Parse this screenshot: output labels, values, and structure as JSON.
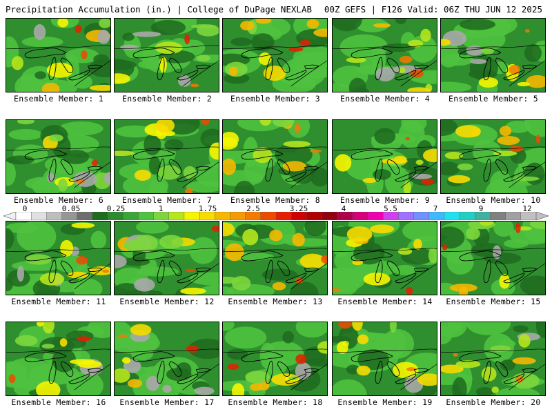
{
  "header": {
    "title": "Precipitation Accumulation (in.) | College of DuPage NEXLAB",
    "run_info": "00Z GEFS | F126 Valid: 06Z THU JUN 12 2025"
  },
  "colorbar": {
    "labels": [
      "0",
      "0.05",
      "0.25",
      "1",
      "1.75",
      "2.5",
      "3.25",
      "4",
      "5.5",
      "7",
      "9",
      "12"
    ],
    "colors": [
      "#ffffff",
      "#e0e0e0",
      "#bdbdbd",
      "#969696",
      "#6e6e6e",
      "#1f6b1f",
      "#2d8a2d",
      "#3aa63a",
      "#4fc23f",
      "#7cd63c",
      "#b5e61d",
      "#f5f500",
      "#f7dc00",
      "#f5b800",
      "#f59a00",
      "#f57a00",
      "#ef4a00",
      "#e52000",
      "#d00000",
      "#b00000",
      "#900010",
      "#b0004a",
      "#d6007a",
      "#f000b0",
      "#d040f0",
      "#a070ff",
      "#7090ff",
      "#40b8ff",
      "#20e0f0",
      "#20d0c0",
      "#40b0a0",
      "#808080",
      "#a0a0a0",
      "#c0c0c0"
    ]
  },
  "members": [
    {
      "label": "Ensemble Member: 1"
    },
    {
      "label": "Ensemble Member: 2"
    },
    {
      "label": "Ensemble Member: 3"
    },
    {
      "label": "Ensemble Member: 4"
    },
    {
      "label": "Ensemble Member: 5"
    },
    {
      "label": "Ensemble Member: 6"
    },
    {
      "label": "Ensemble Member: 7"
    },
    {
      "label": "Ensemble Member: 8"
    },
    {
      "label": "Ensemble Member: 9"
    },
    {
      "label": "Ensemble Member: 10"
    },
    {
      "label": "Ensemble Member: 11"
    },
    {
      "label": "Ensemble Member: 12"
    },
    {
      "label": "Ensemble Member: 13"
    },
    {
      "label": "Ensemble Member: 14"
    },
    {
      "label": "Ensemble Member: 15"
    },
    {
      "label": "Ensemble Member: 16"
    },
    {
      "label": "Ensemble Member: 17"
    },
    {
      "label": "Ensemble Member: 18"
    },
    {
      "label": "Ensemble Member: 19"
    },
    {
      "label": "Ensemble Member: 20"
    }
  ]
}
